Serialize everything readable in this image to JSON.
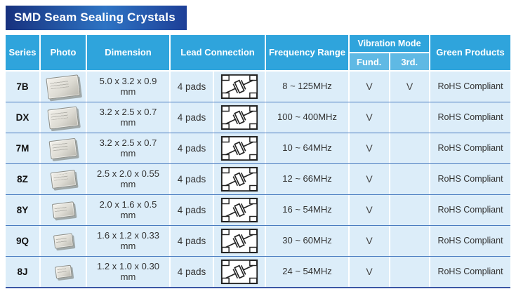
{
  "title": "SMD Seam Sealing Crystals",
  "colors": {
    "banner_start": "#17317E",
    "banner_mid": "#2E74C4",
    "banner_end": "#1D3F97",
    "header_bg": "#2FA4DC",
    "subheader_bg": "#5FB9E4",
    "row_bg": "#DCEDF9",
    "row_divider": "#4A7CC0",
    "table_bottom_border": "#3A56A5"
  },
  "table": {
    "headers": {
      "series": "Series",
      "photo": "Photo",
      "dimension": "Dimension",
      "lead_connection": "Lead Connection",
      "frequency_range": "Frequency Range",
      "vibration_mode": "Vibration Mode",
      "vibration_fund": "Fund.",
      "vibration_3rd": "3rd.",
      "green_products": "Green Products"
    },
    "rows": [
      {
        "series": "7B",
        "photo_icon": "crystal-package-photo",
        "dimension": "5.0 x 3.2 x 0.9",
        "dimension_unit": "mm",
        "lead_connection": "4 pads",
        "lead_icon": "crystal-circuit-icon",
        "frequency_range": "8 ~ 125MHz",
        "fund": "V",
        "third": "V",
        "green_products": "RoHS Compliant"
      },
      {
        "series": "DX",
        "photo_icon": "crystal-package-photo",
        "dimension": "3.2 x 2.5 x 0.7",
        "dimension_unit": "mm",
        "lead_connection": "4 pads",
        "lead_icon": "crystal-circuit-icon",
        "frequency_range": "100 ~ 400MHz",
        "fund": "V",
        "third": "",
        "green_products": "RoHS Compliant"
      },
      {
        "series": "7M",
        "photo_icon": "crystal-package-photo",
        "dimension": "3.2 x 2.5 x 0.7",
        "dimension_unit": "mm",
        "lead_connection": "4 pads",
        "lead_icon": "crystal-circuit-icon",
        "frequency_range": "10 ~ 64MHz",
        "fund": "V",
        "third": "",
        "green_products": "RoHS Compliant"
      },
      {
        "series": "8Z",
        "photo_icon": "crystal-package-photo",
        "dimension": "2.5 x 2.0 x 0.55",
        "dimension_unit": "mm",
        "lead_connection": "4 pads",
        "lead_icon": "crystal-circuit-icon",
        "frequency_range": "12 ~ 66MHz",
        "fund": "V",
        "third": "",
        "green_products": "RoHS Compliant"
      },
      {
        "series": "8Y",
        "photo_icon": "crystal-package-photo",
        "dimension": "2.0 x 1.6 x 0.5",
        "dimension_unit": "mm",
        "lead_connection": "4 pads",
        "lead_icon": "crystal-circuit-icon",
        "frequency_range": "16 ~ 54MHz",
        "fund": "V",
        "third": "",
        "green_products": "RoHS Compliant"
      },
      {
        "series": "9Q",
        "photo_icon": "crystal-package-photo",
        "dimension": "1.6 x 1.2 x 0.33",
        "dimension_unit": "mm",
        "lead_connection": "4 pads",
        "lead_icon": "crystal-circuit-icon",
        "frequency_range": "30 ~ 60MHz",
        "fund": "V",
        "third": "",
        "green_products": "RoHS Compliant"
      },
      {
        "series": "8J",
        "photo_icon": "crystal-package-photo",
        "dimension": "1.2 x 1.0 x 0.30",
        "dimension_unit": "mm",
        "lead_connection": "4 pads",
        "lead_icon": "crystal-circuit-icon",
        "frequency_range": "24 ~ 54MHz",
        "fund": "V",
        "third": "",
        "green_products": "RoHS Compliant"
      }
    ]
  }
}
